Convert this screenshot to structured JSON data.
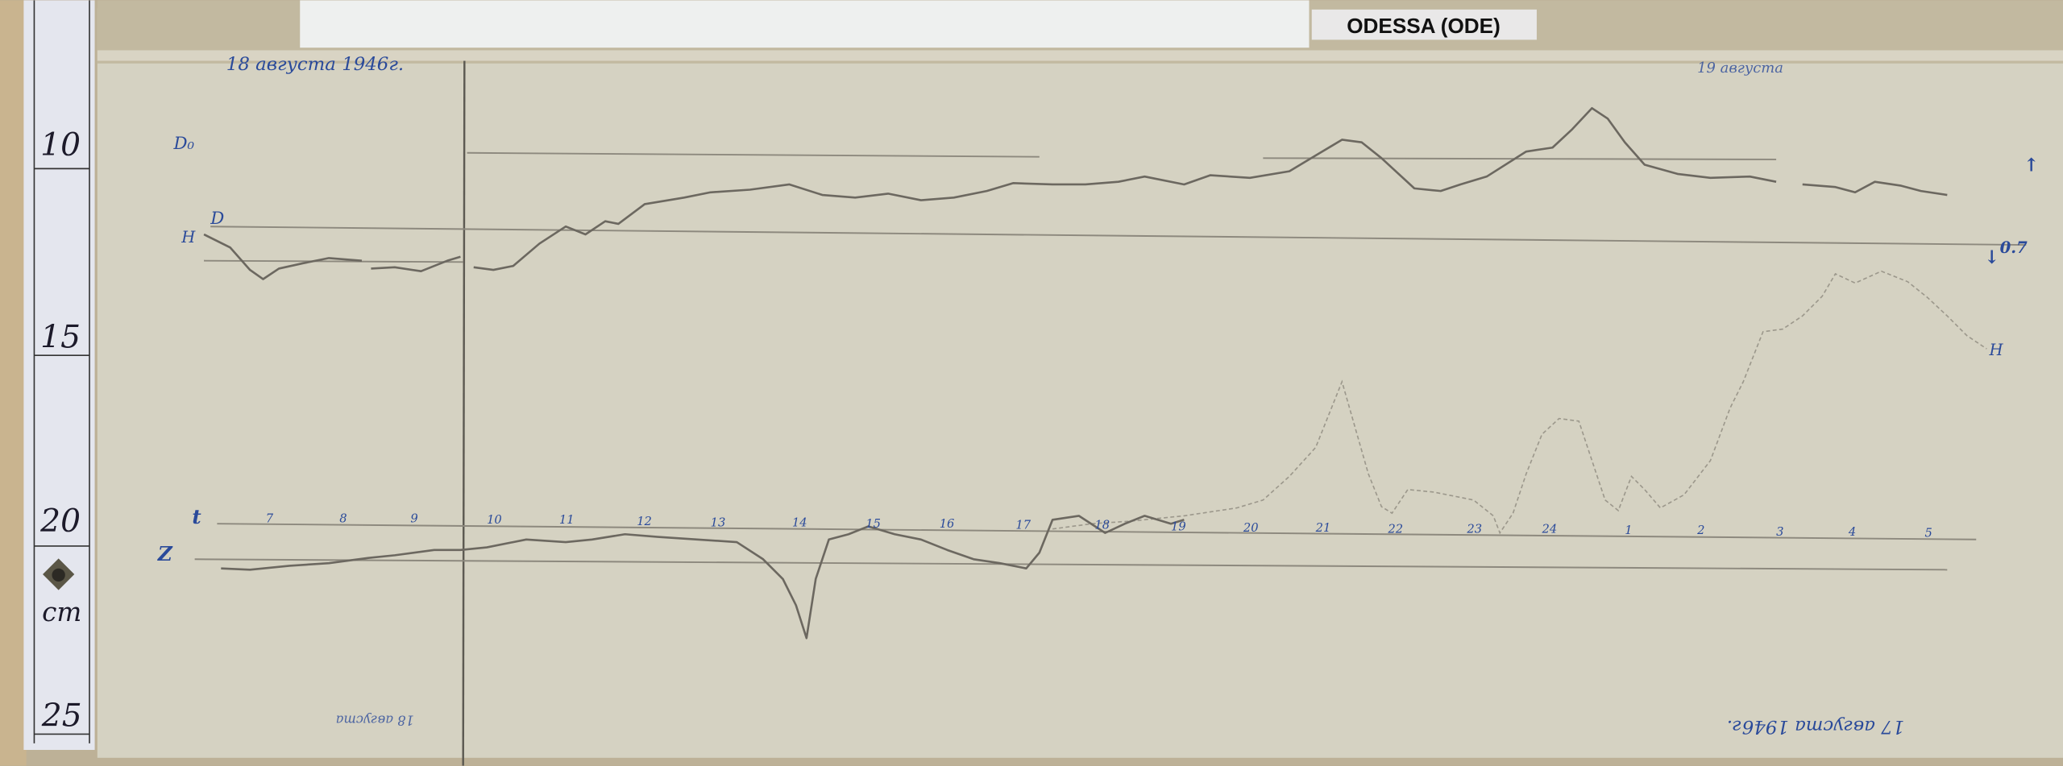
{
  "station_label": "ODESSA (ODE)",
  "ruler": {
    "marks": [
      "10",
      "15",
      "20",
      "25"
    ],
    "unit": "cm"
  },
  "annotations": {
    "date_top_left": "18 августа 1946г.",
    "date_top_right": "19 августа",
    "date_bottom_right_inverted": "17 августа 1946г.",
    "date_bottom_left_inverted": "18 августа",
    "trace_label_d": "D",
    "trace_label_h_left": "H",
    "trace_label_h_right": "H",
    "trace_label_z": "Z",
    "baseline_label_top": "D₀",
    "time_axis_label": "t",
    "right_margin_mark": "0.7"
  },
  "time_axis": {
    "hour_labels": [
      "7",
      "8",
      "9",
      "10",
      "11",
      "12",
      "13",
      "14",
      "15",
      "16",
      "17",
      "18",
      "19",
      "20",
      "21",
      "22",
      "23",
      "24",
      "1",
      "2",
      "3",
      "4",
      "5"
    ]
  },
  "colors": {
    "ink": "#2a4a9a",
    "trace": "#6c6860",
    "paper": "#d5d2c2"
  }
}
